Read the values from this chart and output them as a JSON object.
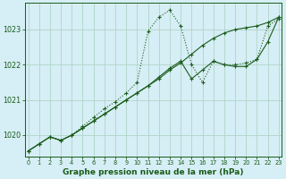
{
  "title": "Graphe pression niveau de la mer (hPa)",
  "bg_color": "#d6eef5",
  "line_color": "#1a5c1a",
  "grid_color": "#b0d4c8",
  "x_ticks": [
    0,
    1,
    2,
    3,
    4,
    5,
    6,
    7,
    8,
    9,
    10,
    11,
    12,
    13,
    14,
    15,
    16,
    17,
    18,
    19,
    20,
    21,
    22,
    23
  ],
  "y_ticks": [
    1020,
    1021,
    1022,
    1023
  ],
  "ylim": [
    1019.4,
    1023.75
  ],
  "xlim": [
    -0.3,
    23.3
  ],
  "s1": [
    1019.55,
    1019.75,
    1019.95,
    1019.85,
    1020.0,
    1020.25,
    1020.5,
    1020.75,
    1020.95,
    1021.2,
    1021.5,
    1022.95,
    1023.35,
    1023.55,
    1023.1,
    1022.0,
    1021.5,
    1022.1,
    1022.0,
    1022.0,
    1022.05,
    1022.15,
    1023.1,
    1023.3
  ],
  "s2": [
    1019.55,
    1019.75,
    1019.95,
    1019.85,
    1020.0,
    1020.2,
    1020.4,
    1020.6,
    1020.8,
    1021.0,
    1021.2,
    1021.4,
    1021.6,
    1021.85,
    1022.05,
    1022.3,
    1022.55,
    1022.75,
    1022.9,
    1023.0,
    1023.05,
    1023.1,
    1023.2,
    1023.35
  ],
  "s3": [
    1019.55,
    1019.75,
    1019.95,
    1019.85,
    1020.0,
    1020.2,
    1020.4,
    1020.6,
    1020.8,
    1021.0,
    1021.2,
    1021.4,
    1021.65,
    1021.9,
    1022.1,
    1021.6,
    1021.85,
    1022.1,
    1022.0,
    1021.95,
    1021.95,
    1022.15,
    1022.65,
    1023.35
  ],
  "title_fontsize": 6.5,
  "tick_fontsize": 5.5
}
